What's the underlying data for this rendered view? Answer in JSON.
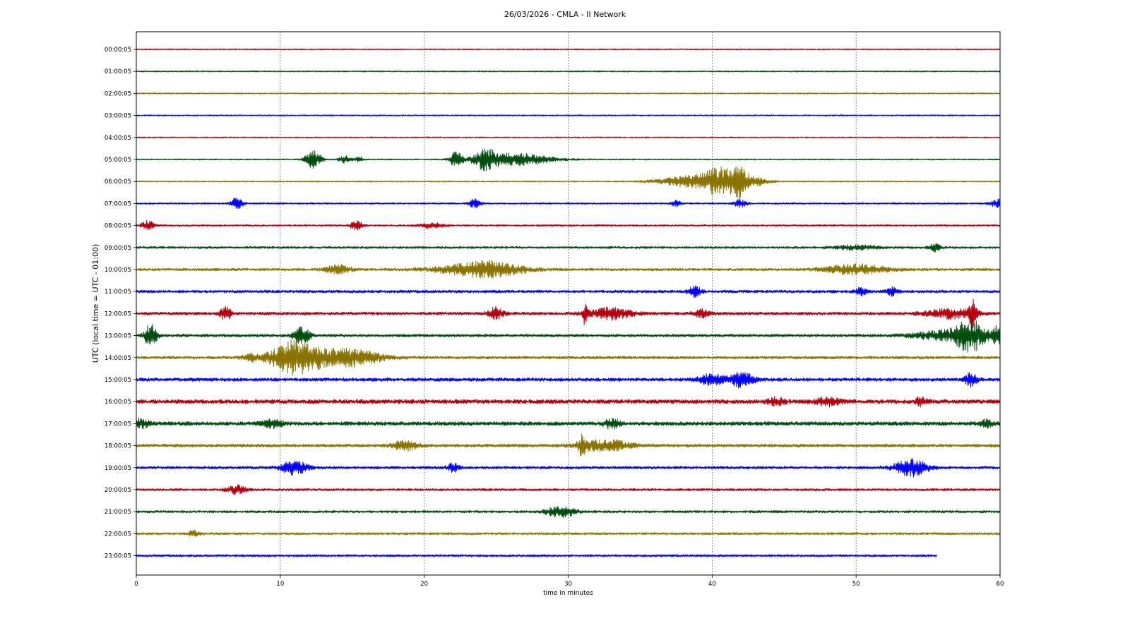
{
  "page_title": "26/03/2026 - CMLA - II Network",
  "chart_data": {
    "type": "line",
    "title": "26/03/2026 - CMLA - II Network",
    "xlabel": "time in minutes",
    "ylabel": "UTC (local time = UTC - 01:00)",
    "xlim": [
      0,
      60
    ],
    "x_ticks": [
      0,
      10,
      20,
      30,
      40,
      50,
      60
    ],
    "grid": "vertical dotted lines at x ticks",
    "trace_colors": [
      "#b5000f",
      "#004d0f",
      "#8a7300",
      "#0000ff"
    ],
    "rows": [
      {
        "label": "00:00:05",
        "color": "#b5000f",
        "noise": 0.9,
        "end_min": 60,
        "events": []
      },
      {
        "label": "01:00:05",
        "color": "#004d0f",
        "noise": 0.9,
        "end_min": 60,
        "events": []
      },
      {
        "label": "02:00:05",
        "color": "#8a7300",
        "noise": 0.9,
        "end_min": 60,
        "events": []
      },
      {
        "label": "03:00:05",
        "color": "#0000ff",
        "noise": 0.9,
        "end_min": 60,
        "events": []
      },
      {
        "label": "04:00:05",
        "color": "#b5000f",
        "noise": 0.9,
        "end_min": 60,
        "events": []
      },
      {
        "label": "05:00:05",
        "color": "#004d0f",
        "noise": 0.9,
        "end_min": 60,
        "events": [
          [
            12.3,
            0.4,
            12
          ],
          [
            14.5,
            0.3,
            5
          ],
          [
            15.5,
            0.2,
            4
          ],
          [
            22.2,
            0.3,
            11
          ],
          [
            24.2,
            0.5,
            11
          ],
          [
            25.5,
            1.5,
            7
          ],
          [
            27.5,
            1.5,
            4
          ]
        ]
      },
      {
        "label": "06:00:05",
        "color": "#8a7300",
        "noise": 0.9,
        "end_min": 60,
        "events": [
          [
            39.5,
            2.0,
            10
          ],
          [
            40.5,
            0.6,
            12
          ],
          [
            41.8,
            0.3,
            20
          ],
          [
            42.5,
            0.8,
            7
          ]
        ]
      },
      {
        "label": "07:00:05",
        "color": "#0000ff",
        "noise": 1.2,
        "end_min": 60,
        "events": [
          [
            7.0,
            0.3,
            8
          ],
          [
            23.5,
            0.3,
            6
          ],
          [
            37.5,
            0.2,
            5
          ],
          [
            42.0,
            0.3,
            6
          ],
          [
            59.8,
            0.3,
            6
          ]
        ]
      },
      {
        "label": "08:00:05",
        "color": "#b5000f",
        "noise": 1.3,
        "end_min": 60,
        "events": [
          [
            0.8,
            0.3,
            7
          ],
          [
            15.3,
            0.3,
            7
          ],
          [
            20.5,
            0.6,
            4
          ]
        ]
      },
      {
        "label": "09:00:05",
        "color": "#004d0f",
        "noise": 1.6,
        "end_min": 60,
        "events": [
          [
            55.5,
            0.3,
            5
          ],
          [
            50.0,
            1.0,
            3
          ]
        ]
      },
      {
        "label": "10:00:05",
        "color": "#8a7300",
        "noise": 1.9,
        "end_min": 60,
        "events": [
          [
            14.0,
            0.6,
            6
          ],
          [
            23.5,
            2.0,
            7
          ],
          [
            25.0,
            1.5,
            5
          ],
          [
            50.0,
            1.5,
            7
          ]
        ]
      },
      {
        "label": "11:00:05",
        "color": "#0000ff",
        "noise": 2.0,
        "end_min": 60,
        "events": [
          [
            38.8,
            0.3,
            7
          ],
          [
            50.3,
            0.3,
            5
          ],
          [
            52.5,
            0.3,
            5
          ]
        ]
      },
      {
        "label": "12:00:05",
        "color": "#b5000f",
        "noise": 2.2,
        "end_min": 60,
        "events": [
          [
            6.2,
            0.3,
            9
          ],
          [
            25.0,
            0.4,
            8
          ],
          [
            31.2,
            0.1,
            22
          ],
          [
            33.0,
            1.0,
            8
          ],
          [
            39.3,
            0.4,
            5
          ],
          [
            56.5,
            1.2,
            6
          ],
          [
            58.1,
            0.2,
            18
          ]
        ]
      },
      {
        "label": "13:00:05",
        "color": "#004d0f",
        "noise": 2.0,
        "end_min": 60,
        "events": [
          [
            1.0,
            0.3,
            16
          ],
          [
            11.5,
            0.4,
            12
          ],
          [
            56.0,
            1.5,
            6
          ],
          [
            58.0,
            0.8,
            20
          ],
          [
            59.8,
            0.2,
            14
          ]
        ]
      },
      {
        "label": "14:00:05",
        "color": "#8a7300",
        "noise": 2.0,
        "end_min": 60,
        "events": [
          [
            11.0,
            1.2,
            20
          ],
          [
            13.5,
            2.0,
            9
          ],
          [
            15.5,
            1.0,
            6
          ],
          [
            8.0,
            0.5,
            4
          ]
        ]
      },
      {
        "label": "15:00:05",
        "color": "#0000ff",
        "noise": 2.4,
        "end_min": 60,
        "events": [
          [
            40.0,
            0.6,
            8
          ],
          [
            42.0,
            0.6,
            10
          ],
          [
            58.0,
            0.3,
            10
          ]
        ]
      },
      {
        "label": "16:00:05",
        "color": "#b5000f",
        "noise": 3.0,
        "end_min": 60,
        "events": [
          [
            44.5,
            0.4,
            5
          ],
          [
            48.0,
            0.6,
            5
          ],
          [
            54.5,
            0.3,
            5
          ]
        ]
      },
      {
        "label": "17:00:05",
        "color": "#004d0f",
        "noise": 2.8,
        "end_min": 60,
        "events": [
          [
            0.3,
            0.4,
            6
          ],
          [
            9.5,
            0.5,
            5
          ],
          [
            33.0,
            0.4,
            6
          ],
          [
            59.0,
            0.3,
            5
          ]
        ]
      },
      {
        "label": "18:00:05",
        "color": "#8a7300",
        "noise": 2.2,
        "end_min": 60,
        "events": [
          [
            18.7,
            0.6,
            7
          ],
          [
            31.0,
            0.2,
            13
          ],
          [
            32.5,
            1.2,
            8
          ]
        ]
      },
      {
        "label": "19:00:05",
        "color": "#0000ff",
        "noise": 1.9,
        "end_min": 60,
        "events": [
          [
            11.0,
            0.6,
            11
          ],
          [
            22.0,
            0.3,
            6
          ],
          [
            53.8,
            0.8,
            12
          ]
        ]
      },
      {
        "label": "20:00:05",
        "color": "#b5000f",
        "noise": 1.7,
        "end_min": 60,
        "events": [
          [
            7.0,
            0.5,
            6
          ]
        ]
      },
      {
        "label": "21:00:05",
        "color": "#004d0f",
        "noise": 1.7,
        "end_min": 60,
        "events": [
          [
            29.5,
            0.7,
            8
          ]
        ]
      },
      {
        "label": "22:00:05",
        "color": "#8a7300",
        "noise": 1.6,
        "end_min": 60,
        "events": [
          [
            4.0,
            0.3,
            4
          ]
        ]
      },
      {
        "label": "23:00:05",
        "color": "#0000ff",
        "noise": 1.6,
        "end_min": 55.6,
        "events": []
      }
    ]
  }
}
